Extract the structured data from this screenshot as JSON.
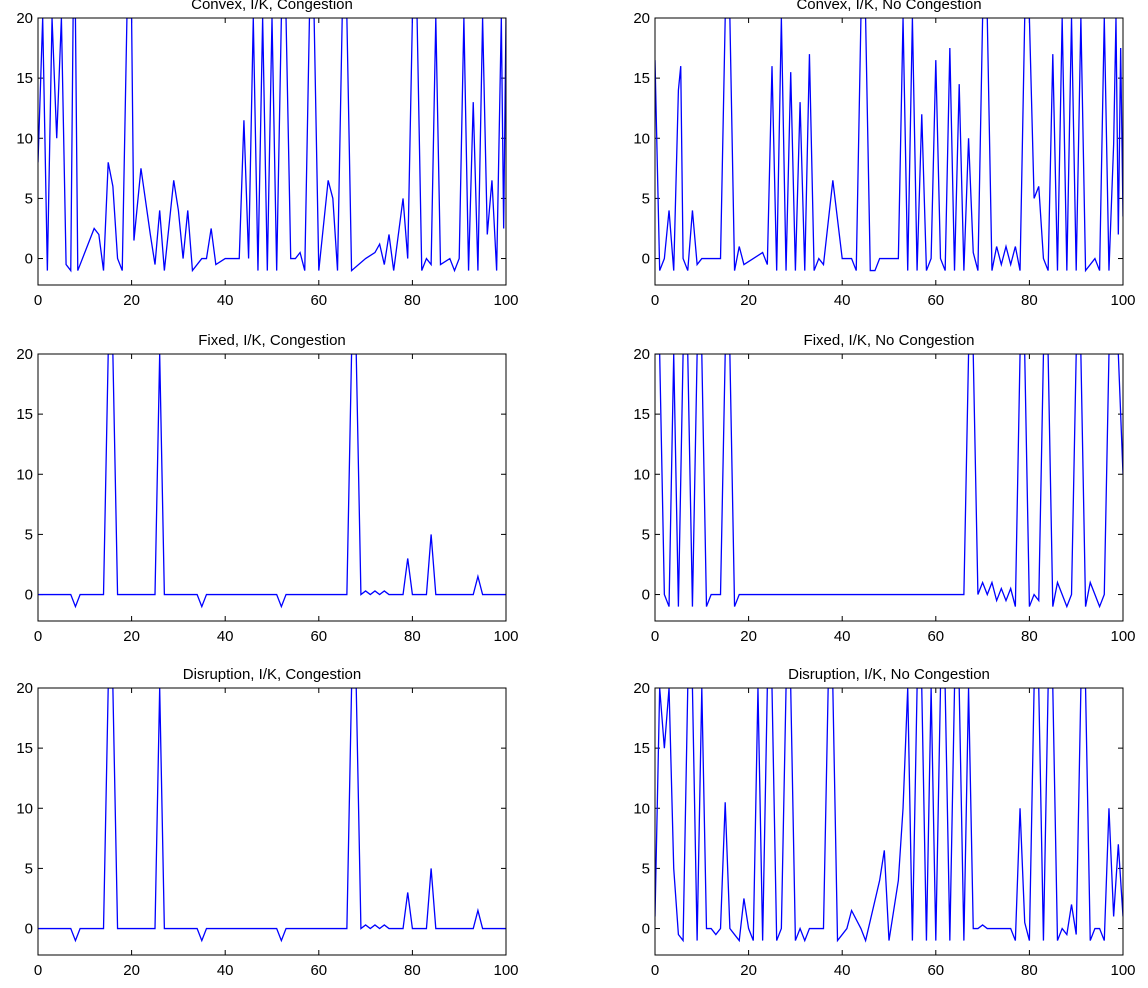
{
  "chart_data": [
    {
      "type": "line",
      "title": "Convex, I/K, Congestion",
      "color": "#0000ff",
      "xlim": [
        0,
        100
      ],
      "ylim": [
        -2.2,
        20
      ],
      "xticks": [
        0,
        20,
        40,
        60,
        80,
        100
      ],
      "yticks": [
        0,
        5,
        10,
        15,
        20
      ],
      "x": [
        0,
        1,
        2,
        3,
        4,
        5,
        6,
        7,
        7.5,
        8,
        8.5,
        12,
        13,
        14,
        15,
        16,
        17,
        18,
        19,
        20,
        20.5,
        22,
        24,
        25,
        26,
        27,
        29,
        30,
        31,
        32,
        33,
        35,
        36,
        37,
        38,
        40,
        43,
        44,
        45,
        46,
        47,
        48,
        49,
        50,
        51,
        52,
        53,
        54,
        55,
        56,
        57,
        58,
        59,
        60,
        62,
        63,
        64,
        65,
        66,
        67,
        70,
        72,
        73,
        74,
        75,
        76,
        78,
        79,
        80,
        81,
        82,
        83,
        84,
        85,
        86,
        88,
        89,
        90,
        91,
        92,
        93,
        94,
        95,
        96,
        97,
        98,
        99,
        99.5,
        100
      ],
      "values": [
        8,
        20,
        -1,
        20,
        10,
        20,
        -0.5,
        -1,
        20,
        20,
        -1,
        2.5,
        2,
        -1,
        8,
        6,
        0,
        -1,
        20,
        20,
        1.5,
        7.5,
        2,
        -0.5,
        4,
        -1,
        6.5,
        4,
        0,
        4,
        -1,
        0,
        0,
        2.5,
        -0.5,
        0,
        0,
        11.5,
        0,
        20,
        -1,
        20,
        -1,
        20,
        -1,
        20,
        20,
        0,
        0,
        0.5,
        -1,
        20,
        20,
        -1,
        6.5,
        5,
        -1,
        20,
        20,
        -1,
        0,
        0.5,
        1.2,
        -0.5,
        2,
        -1,
        5,
        0,
        20,
        20,
        -1,
        0,
        -0.5,
        20,
        -0.5,
        0,
        -1,
        0,
        20,
        -1,
        13,
        -1,
        20,
        2,
        6.5,
        -1,
        20,
        2.5,
        20
      ]
    },
    {
      "type": "line",
      "title": "Convex, I/K, No Congestion",
      "color": "#0000ff",
      "xlim": [
        0,
        100
      ],
      "ylim": [
        -2.2,
        20
      ],
      "xticks": [
        0,
        20,
        40,
        60,
        80,
        100
      ],
      "yticks": [
        0,
        5,
        10,
        15,
        20
      ],
      "x": [
        0,
        1,
        2,
        3,
        4,
        5,
        5.5,
        6,
        7,
        8,
        9,
        10,
        14,
        15,
        16,
        17,
        18,
        19,
        21,
        23,
        24,
        25,
        26,
        27,
        28,
        29,
        30,
        31,
        32,
        33,
        34,
        35,
        36,
        38,
        40,
        42,
        43,
        44,
        45,
        46,
        47,
        48,
        52,
        53,
        54,
        55,
        56,
        57,
        58,
        59,
        60,
        61,
        62,
        63,
        64,
        65,
        66,
        67,
        68,
        69,
        70,
        71,
        72,
        73,
        74,
        75,
        76,
        77,
        78,
        79,
        80,
        81,
        82,
        83,
        84,
        85,
        86,
        87,
        88,
        89,
        90,
        91,
        92,
        94,
        95,
        96,
        97,
        98,
        98.5,
        99,
        99.5,
        100
      ],
      "values": [
        16.5,
        -1,
        0,
        4,
        -1,
        14,
        16,
        0,
        -1,
        4,
        -0.5,
        0,
        0,
        20,
        20,
        -1,
        1,
        -0.5,
        0,
        0.5,
        -0.5,
        16,
        -1,
        20,
        -1,
        15.5,
        -1,
        13,
        -1,
        17,
        -1,
        0,
        -0.5,
        6.5,
        0,
        0,
        -1,
        20,
        20,
        -1,
        -1,
        0,
        0,
        20,
        -1,
        20,
        -1,
        12,
        -1,
        0,
        16.5,
        0,
        -1,
        17.5,
        -1,
        14.5,
        -1,
        10,
        0.5,
        -1,
        20,
        20,
        -1,
        1,
        -0.5,
        1,
        -0.5,
        1,
        -1,
        20,
        20,
        5,
        6,
        0,
        -1,
        17,
        -1,
        20,
        -1,
        20,
        -1,
        20,
        -1,
        0,
        -1,
        20,
        -1,
        9.5,
        20,
        2,
        17.5,
        3.5
      ]
    },
    {
      "type": "line",
      "title": "Fixed, I/K, Congestion",
      "color": "#0000ff",
      "xlim": [
        0,
        100
      ],
      "ylim": [
        -2.2,
        20
      ],
      "xticks": [
        0,
        20,
        40,
        60,
        80,
        100
      ],
      "yticks": [
        0,
        5,
        10,
        15,
        20
      ],
      "x": [
        0,
        7,
        8,
        9,
        14,
        15,
        16,
        17,
        25,
        26,
        27,
        34,
        35,
        36,
        51,
        52,
        53,
        66,
        67,
        68,
        69,
        70,
        71,
        72,
        73,
        74,
        75,
        78,
        79,
        80,
        83,
        84,
        85,
        93,
        94,
        95,
        100
      ],
      "values": [
        0,
        0,
        -1,
        0,
        0,
        20,
        20,
        0,
        0,
        20,
        0,
        0,
        -1,
        0,
        0,
        -1,
        0,
        0,
        20,
        20,
        0,
        0.3,
        0,
        0.3,
        0,
        0.3,
        0,
        0,
        3,
        0,
        0,
        5,
        0,
        0,
        1.5,
        0,
        0
      ]
    },
    {
      "type": "line",
      "title": "Fixed, I/K, No Congestion",
      "color": "#0000ff",
      "xlim": [
        0,
        100
      ],
      "ylim": [
        -2.2,
        20
      ],
      "xticks": [
        0,
        20,
        40,
        60,
        80,
        100
      ],
      "yticks": [
        0,
        5,
        10,
        15,
        20
      ],
      "x": [
        0,
        1,
        2,
        3,
        4,
        5,
        6,
        7,
        8,
        9,
        10,
        11,
        12,
        14,
        15,
        16,
        17,
        18,
        66,
        67,
        68,
        69,
        70,
        71,
        72,
        73,
        74,
        75,
        76,
        77,
        78,
        79,
        80,
        81,
        82,
        83,
        84,
        85,
        86,
        87,
        88,
        89,
        90,
        91,
        92,
        93,
        94,
        95,
        96,
        97,
        98,
        99,
        100
      ],
      "values": [
        20,
        20,
        0,
        -1,
        20,
        -1,
        20,
        20,
        -1,
        20,
        20,
        -1,
        0,
        0,
        20,
        20,
        -1,
        0,
        0,
        20,
        20,
        0,
        1,
        0,
        1,
        -0.5,
        0.5,
        -0.5,
        0.5,
        -1,
        20,
        20,
        -1,
        0,
        -0.5,
        20,
        20,
        -1,
        1,
        0,
        -1,
        0,
        20,
        20,
        -1,
        1,
        0,
        -1,
        0,
        20,
        20,
        20,
        10
      ]
    },
    {
      "type": "line",
      "title": "Disruption, I/K, Congestion",
      "color": "#0000ff",
      "xlim": [
        0,
        100
      ],
      "ylim": [
        -2.2,
        20
      ],
      "xticks": [
        0,
        20,
        40,
        60,
        80,
        100
      ],
      "yticks": [
        0,
        5,
        10,
        15,
        20
      ],
      "x": [
        0,
        7,
        8,
        9,
        14,
        15,
        16,
        17,
        25,
        26,
        27,
        34,
        35,
        36,
        51,
        52,
        53,
        66,
        67,
        68,
        69,
        70,
        71,
        72,
        73,
        74,
        75,
        78,
        79,
        80,
        83,
        84,
        85,
        93,
        94,
        95,
        100
      ],
      "values": [
        0,
        0,
        -1,
        0,
        0,
        20,
        20,
        0,
        0,
        20,
        0,
        0,
        -1,
        0,
        0,
        -1,
        0,
        0,
        20,
        20,
        0,
        0.3,
        0,
        0.3,
        0,
        0.3,
        0,
        0,
        3,
        0,
        0,
        5,
        0,
        0,
        1.5,
        0,
        0
      ]
    },
    {
      "type": "line",
      "title": "Disruption, I/K, No Congestion",
      "color": "#0000ff",
      "xlim": [
        0,
        100
      ],
      "ylim": [
        -2.2,
        20
      ],
      "xticks": [
        0,
        20,
        40,
        60,
        80,
        100
      ],
      "yticks": [
        0,
        5,
        10,
        15,
        20
      ],
      "x": [
        0,
        1,
        2,
        3,
        4,
        5,
        6,
        7,
        8,
        9,
        10,
        11,
        12,
        13,
        14,
        15,
        16,
        17,
        18,
        19,
        20,
        21,
        22,
        23,
        24,
        25,
        26,
        27,
        28,
        29,
        30,
        31,
        32,
        33,
        36,
        37,
        38,
        39,
        40,
        41,
        42,
        44,
        45,
        48,
        49,
        50,
        52,
        53,
        54,
        55,
        56,
        57,
        58,
        59,
        60,
        61,
        62,
        63,
        64,
        65,
        66,
        67,
        68,
        69,
        70,
        71,
        76,
        77,
        78,
        79,
        80,
        81,
        82,
        83,
        84,
        85,
        86,
        87,
        88,
        89,
        90,
        91,
        92,
        93,
        94,
        95,
        96,
        97,
        98,
        99,
        100
      ],
      "values": [
        1,
        20,
        15,
        20,
        5,
        -0.5,
        -1,
        20,
        20,
        -1,
        20,
        0,
        0,
        -0.5,
        0,
        10.5,
        0,
        -0.5,
        -1,
        2.5,
        0,
        -1,
        20,
        -1,
        20,
        20,
        -1,
        0,
        20,
        20,
        -1,
        0,
        -1,
        0,
        0,
        20,
        20,
        -1,
        -0.5,
        0,
        1.5,
        0,
        -1,
        4,
        6.5,
        -1,
        4,
        10,
        20,
        -1,
        20,
        20,
        -1,
        20,
        -1,
        20,
        20,
        -1,
        20,
        20,
        -1,
        20,
        0,
        0,
        0.3,
        0,
        0,
        -1,
        10,
        0.5,
        -1,
        20,
        20,
        -1,
        20,
        20,
        -1,
        0,
        -0.5,
        2,
        -0.5,
        20,
        20,
        -1,
        0,
        0,
        -1,
        10,
        1,
        7,
        1
      ]
    }
  ]
}
